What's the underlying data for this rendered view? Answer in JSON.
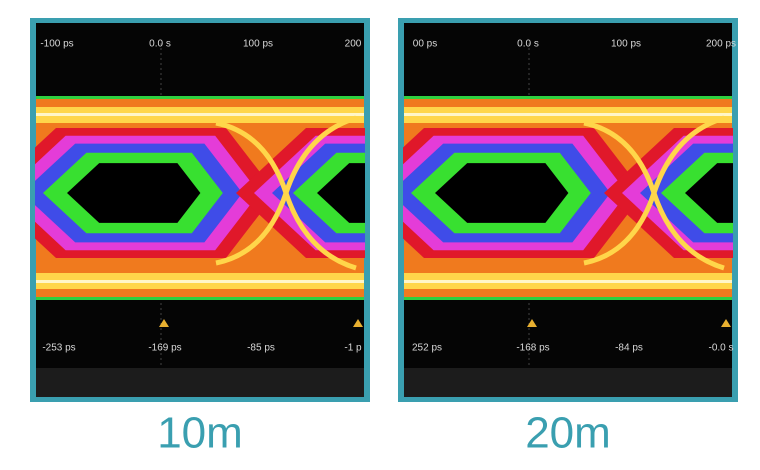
{
  "panels": [
    {
      "top_labels": [
        "-100 ps",
        "0.0 s",
        "100 ps",
        "200"
      ],
      "bottom_labels": [
        "-253 ps",
        "-169 ps",
        "-85 ps",
        "-1 p"
      ],
      "caption": "10m"
    },
    {
      "top_labels": [
        "00 ps",
        "0.0 s",
        "100 ps",
        "200 ps"
      ],
      "bottom_labels": [
        "252 ps",
        "-168 ps",
        "-84 ps",
        "-0.0 s"
      ],
      "caption": "20m"
    }
  ]
}
